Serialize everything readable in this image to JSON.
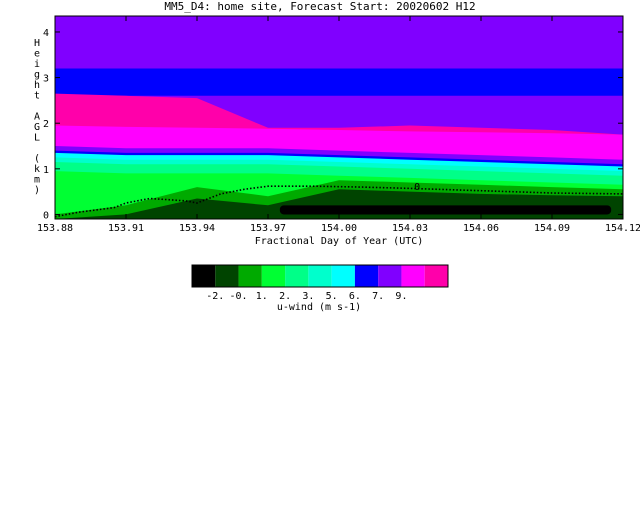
{
  "title": "MM5_D4: home site,  Forecast Start: 20020602 H12",
  "chart_data": {
    "type": "heatmap",
    "title": "MM5_D4: home site,  Forecast Start: 20020602 H12",
    "xlabel": "Fractional Day of Year (UTC)",
    "ylabel": "Height AGL (km)",
    "xlim": [
      153.88,
      154.12
    ],
    "ylim": [
      -0.1,
      4.35
    ],
    "x_ticks": [
      "153.88",
      "153.91",
      "153.94",
      "153.97",
      "154.00",
      "154.03",
      "154.06",
      "154.09",
      "154.12"
    ],
    "x_tick_values": [
      153.88,
      153.91,
      153.94,
      153.97,
      154.0,
      154.03,
      154.06,
      154.09,
      154.12
    ],
    "y_ticks": [
      "0",
      "1",
      "2",
      "3",
      "4"
    ],
    "y_tick_values": [
      0,
      1,
      2,
      3,
      4
    ],
    "contour_label": "0",
    "colorbar": {
      "label": "u-wind (m s-1)",
      "tick_labels": [
        "-2.",
        "-0.",
        "1.",
        "2.",
        "3.",
        "5.",
        "6.",
        "7.",
        "9."
      ],
      "colors": [
        "#000000",
        "#004400",
        "#00aa00",
        "#00ff33",
        "#00ff88",
        "#00ffcc",
        "#00ffff",
        "#0000ff",
        "#8000ff",
        "#ff00ff",
        "#ff00aa"
      ]
    },
    "bands": [
      {
        "color": "#8000ff",
        "base_km": [
          4.35,
          4.35,
          4.35,
          4.35,
          4.35,
          4.35,
          4.35,
          4.35,
          4.35
        ]
      },
      {
        "color": "#0000ff",
        "base_km": [
          3.2,
          3.2,
          3.2,
          3.2,
          3.2,
          3.2,
          3.2,
          3.2,
          3.2
        ]
      },
      {
        "color": "#8000ff",
        "base_km": [
          2.6,
          2.6,
          2.6,
          2.6,
          2.6,
          2.6,
          2.6,
          2.6,
          2.6
        ]
      },
      {
        "color": "#ff00aa",
        "base_km": [
          2.65,
          2.6,
          2.55,
          1.9,
          1.9,
          1.95,
          1.9,
          1.85,
          1.75
        ]
      },
      {
        "color": "#ff00ff",
        "base_km": [
          1.95,
          1.92,
          1.9,
          1.88,
          1.85,
          1.82,
          1.8,
          1.78,
          1.75
        ]
      },
      {
        "color": "#8000ff",
        "base_km": [
          1.5,
          1.45,
          1.45,
          1.45,
          1.4,
          1.35,
          1.3,
          1.25,
          1.2
        ]
      },
      {
        "color": "#0000ff",
        "base_km": [
          1.4,
          1.35,
          1.35,
          1.35,
          1.3,
          1.25,
          1.2,
          1.15,
          1.1
        ]
      },
      {
        "color": "#00ffff",
        "base_km": [
          1.35,
          1.3,
          1.3,
          1.3,
          1.25,
          1.2,
          1.15,
          1.1,
          1.05
        ]
      },
      {
        "color": "#00ffcc",
        "base_km": [
          1.25,
          1.2,
          1.2,
          1.2,
          1.15,
          1.1,
          1.05,
          1.0,
          0.95
        ]
      },
      {
        "color": "#00ff88",
        "base_km": [
          1.15,
          1.1,
          1.1,
          1.1,
          1.05,
          1.0,
          0.95,
          0.9,
          0.85
        ]
      },
      {
        "color": "#00ff33",
        "base_km": [
          0.95,
          0.9,
          0.9,
          0.9,
          0.85,
          0.8,
          0.75,
          0.7,
          0.65
        ]
      },
      {
        "color": "#00aa00",
        "base_km": [
          0.0,
          0.2,
          0.6,
          0.4,
          0.75,
          0.7,
          0.65,
          0.6,
          0.55
        ]
      },
      {
        "color": "#004400",
        "base_km": [
          -0.1,
          0.0,
          0.35,
          0.2,
          0.55,
          0.5,
          0.45,
          0.42,
          0.4
        ]
      }
    ],
    "core_region": {
      "color": "#000000",
      "top_km": 0.2,
      "bottom_km": 0.0,
      "x_range": [
        153.975,
        154.115
      ]
    },
    "zero_contour": {
      "x": [
        153.88,
        153.89,
        153.905,
        153.91,
        153.92,
        153.935,
        153.94,
        153.95,
        153.96,
        153.97,
        153.99,
        154.01,
        154.03,
        154.06,
        154.09,
        154.12
      ],
      "y": [
        -0.05,
        0.05,
        0.15,
        0.25,
        0.35,
        0.3,
        0.25,
        0.45,
        0.55,
        0.62,
        0.62,
        0.6,
        0.57,
        0.52,
        0.47,
        0.45
      ]
    },
    "zero_label_position": {
      "x": 154.033,
      "y": 0.6
    }
  }
}
